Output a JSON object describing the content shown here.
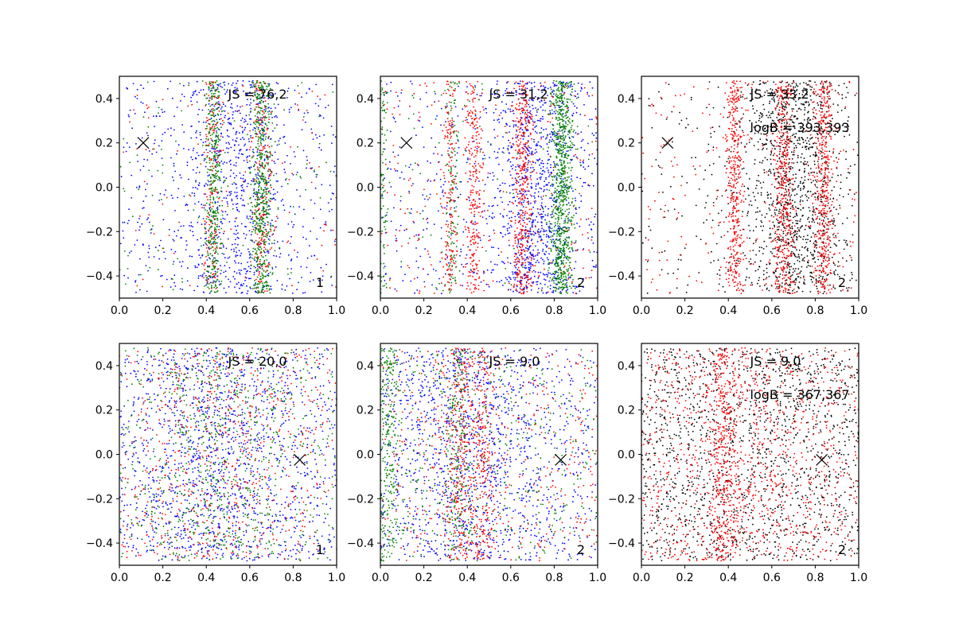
{
  "colors": {
    "blue": "#0000ff",
    "red": "#ff0000",
    "green": "#008000",
    "black": "#000000",
    "frame": "#000000"
  },
  "chart_data": [
    {
      "type": "scatter",
      "grid": false,
      "xlim": [
        0.0,
        1.0
      ],
      "ylim": [
        -0.5,
        0.5
      ],
      "x_ticks": [
        "0.0",
        "0.2",
        "0.4",
        "0.6",
        "0.8",
        "1.0"
      ],
      "y_ticks": [
        "−0.4",
        "−0.2",
        "0.0",
        "0.2",
        "0.4"
      ],
      "annotation": "JS = 76,2",
      "annotation2": "",
      "corner_label": "1",
      "marker": {
        "symbol": "×",
        "x": 0.11,
        "y": 0.2
      },
      "series": [
        {
          "color": "blue",
          "count": 1100,
          "clusters": [
            {
              "center": 0.53,
              "spread": 0.12,
              "weight": 0.55
            },
            {
              "center": 0.5,
              "spread": 0.5,
              "weight": 0.45
            }
          ]
        },
        {
          "color": "red",
          "count": 500,
          "clusters": [
            {
              "center": 0.43,
              "spread": 0.018,
              "weight": 0.35
            },
            {
              "center": 0.655,
              "spread": 0.025,
              "weight": 0.45
            },
            {
              "center": 0.5,
              "spread": 0.5,
              "weight": 0.2
            }
          ]
        },
        {
          "color": "green",
          "count": 1000,
          "clusters": [
            {
              "center": 0.435,
              "spread": 0.02,
              "weight": 0.35
            },
            {
              "center": 0.655,
              "spread": 0.025,
              "weight": 0.55
            },
            {
              "center": 0.5,
              "spread": 0.5,
              "weight": 0.1
            }
          ]
        }
      ]
    },
    {
      "type": "scatter",
      "grid": false,
      "xlim": [
        0.0,
        1.0
      ],
      "ylim": [
        -0.5,
        0.5
      ],
      "x_ticks": [
        "0.0",
        "0.2",
        "0.4",
        "0.6",
        "0.8",
        "1.0"
      ],
      "y_ticks": [
        "−0.4",
        "−0.2",
        "0.0",
        "0.2",
        "0.4"
      ],
      "annotation": "JS = 31,2",
      "annotation2": "",
      "corner_label": "2",
      "marker": {
        "symbol": "×",
        "x": 0.12,
        "y": 0.2
      },
      "series": [
        {
          "color": "blue",
          "count": 1300,
          "clusters": [
            {
              "center": 0.72,
              "spread": 0.1,
              "weight": 0.6
            },
            {
              "center": 0.5,
              "spread": 0.5,
              "weight": 0.4
            }
          ]
        },
        {
          "color": "red",
          "count": 1100,
          "clusters": [
            {
              "center": 0.32,
              "spread": 0.015,
              "weight": 0.15
            },
            {
              "center": 0.43,
              "spread": 0.018,
              "weight": 0.22
            },
            {
              "center": 0.655,
              "spread": 0.022,
              "weight": 0.38
            },
            {
              "center": 0.5,
              "spread": 0.5,
              "weight": 0.25
            }
          ]
        },
        {
          "color": "green",
          "count": 1100,
          "clusters": [
            {
              "center": 0.835,
              "spread": 0.025,
              "weight": 0.7
            },
            {
              "center": 0.33,
              "spread": 0.015,
              "weight": 0.1
            },
            {
              "center": 0.01,
              "spread": 0.01,
              "weight": 0.1
            },
            {
              "center": 0.5,
              "spread": 0.5,
              "weight": 0.1
            }
          ]
        }
      ]
    },
    {
      "type": "scatter",
      "grid": false,
      "xlim": [
        0.0,
        1.0
      ],
      "ylim": [
        -0.5,
        0.5
      ],
      "x_ticks": [
        "0.0",
        "0.2",
        "0.4",
        "0.6",
        "0.8",
        "1.0"
      ],
      "y_ticks": [
        "−0.4",
        "−0.2",
        "0.0",
        "0.2",
        "0.4"
      ],
      "annotation": "JS = 33,2",
      "annotation2": "logB = 393,393",
      "corner_label": "2",
      "marker": {
        "symbol": "×",
        "x": 0.12,
        "y": 0.2
      },
      "series": [
        {
          "color": "black",
          "count": 1400,
          "clusters": [
            {
              "center": 0.7,
              "spread": 0.12,
              "weight": 0.8
            },
            {
              "center": 0.5,
              "spread": 0.5,
              "weight": 0.2
            }
          ]
        },
        {
          "color": "red",
          "count": 1500,
          "clusters": [
            {
              "center": 0.43,
              "spread": 0.02,
              "weight": 0.25
            },
            {
              "center": 0.655,
              "spread": 0.025,
              "weight": 0.3
            },
            {
              "center": 0.84,
              "spread": 0.022,
              "weight": 0.3
            },
            {
              "center": 0.5,
              "spread": 0.5,
              "weight": 0.15
            }
          ]
        }
      ]
    },
    {
      "type": "scatter",
      "grid": false,
      "xlim": [
        0.0,
        1.0
      ],
      "ylim": [
        -0.5,
        0.5
      ],
      "x_ticks": [
        "0.0",
        "0.2",
        "0.4",
        "0.6",
        "0.8",
        "1.0"
      ],
      "y_ticks": [
        "−0.4",
        "−0.2",
        "0.0",
        "0.2",
        "0.4"
      ],
      "annotation": "JS = 20,0",
      "annotation2": "",
      "corner_label": "1",
      "marker": {
        "symbol": "×",
        "x": 0.83,
        "y": -0.025
      },
      "series": [
        {
          "color": "blue",
          "count": 1500,
          "clusters": [
            {
              "center": 0.45,
              "spread": 0.2,
              "weight": 0.5
            },
            {
              "center": 0.5,
              "spread": 0.5,
              "weight": 0.5
            }
          ]
        },
        {
          "color": "red",
          "count": 700,
          "clusters": [
            {
              "center": 0.45,
              "spread": 0.2,
              "weight": 0.5
            },
            {
              "center": 0.5,
              "spread": 0.5,
              "weight": 0.5
            }
          ]
        },
        {
          "color": "green",
          "count": 800,
          "clusters": [
            {
              "center": 0.45,
              "spread": 0.2,
              "weight": 0.5
            },
            {
              "center": 0.5,
              "spread": 0.5,
              "weight": 0.5
            }
          ]
        }
      ]
    },
    {
      "type": "scatter",
      "grid": false,
      "xlim": [
        0.0,
        1.0
      ],
      "ylim": [
        -0.5,
        0.5
      ],
      "x_ticks": [
        "0.0",
        "0.2",
        "0.4",
        "0.6",
        "0.8",
        "1.0"
      ],
      "y_ticks": [
        "−0.4",
        "−0.2",
        "0.0",
        "0.2",
        "0.4"
      ],
      "annotation": "JS = 9,0",
      "annotation2": "",
      "corner_label": "2",
      "marker": {
        "symbol": "×",
        "x": 0.83,
        "y": -0.025
      },
      "series": [
        {
          "color": "blue",
          "count": 1400,
          "clusters": [
            {
              "center": 0.4,
              "spread": 0.2,
              "weight": 0.5
            },
            {
              "center": 0.5,
              "spread": 0.5,
              "weight": 0.5
            }
          ]
        },
        {
          "color": "red",
          "count": 1000,
          "clusters": [
            {
              "center": 0.36,
              "spread": 0.03,
              "weight": 0.3
            },
            {
              "center": 0.47,
              "spread": 0.03,
              "weight": 0.25
            },
            {
              "center": 0.5,
              "spread": 0.5,
              "weight": 0.45
            }
          ]
        },
        {
          "color": "green",
          "count": 900,
          "clusters": [
            {
              "center": 0.03,
              "spread": 0.03,
              "weight": 0.35
            },
            {
              "center": 0.36,
              "spread": 0.03,
              "weight": 0.2
            },
            {
              "center": 0.5,
              "spread": 0.5,
              "weight": 0.45
            }
          ]
        }
      ]
    },
    {
      "type": "scatter",
      "grid": false,
      "xlim": [
        0.0,
        1.0
      ],
      "ylim": [
        -0.5,
        0.5
      ],
      "x_ticks": [
        "0.0",
        "0.2",
        "0.4",
        "0.6",
        "0.8",
        "1.0"
      ],
      "y_ticks": [
        "−0.4",
        "−0.2",
        "0.0",
        "0.2",
        "0.4"
      ],
      "annotation": "JS = 9,0",
      "annotation2": "logB = 367,367",
      "corner_label": "2",
      "marker": {
        "symbol": "×",
        "x": 0.83,
        "y": -0.025
      },
      "series": [
        {
          "color": "black",
          "count": 1500,
          "clusters": [
            {
              "center": 0.5,
              "spread": 0.5,
              "weight": 1.0
            }
          ]
        },
        {
          "color": "red",
          "count": 1500,
          "clusters": [
            {
              "center": 0.38,
              "spread": 0.035,
              "weight": 0.25
            },
            {
              "center": 0.45,
              "spread": 0.2,
              "weight": 0.25
            },
            {
              "center": 0.5,
              "spread": 0.5,
              "weight": 0.5
            }
          ]
        }
      ]
    }
  ]
}
